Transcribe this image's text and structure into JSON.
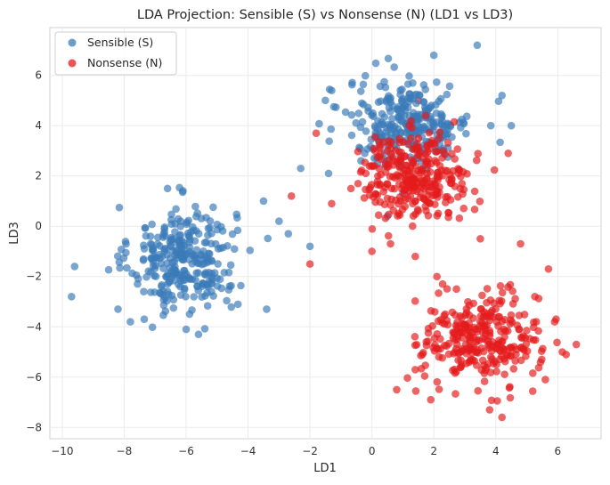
{
  "chart_data": {
    "type": "scatter",
    "title": "LDA Projection: Sensible (S) vs Nonsense (N) (LD1 vs LD3)",
    "xlabel": "LD1",
    "ylabel": "LD3",
    "xlim": [
      -10.4,
      7.4
    ],
    "ylim": [
      -8.45,
      7.9
    ],
    "xticks": [
      -10,
      -8,
      -6,
      -4,
      -2,
      0,
      2,
      4,
      6
    ],
    "yticks": [
      -8,
      -6,
      -4,
      -2,
      0,
      2,
      4,
      6
    ],
    "grid": true,
    "legend_position": "top-left",
    "series": [
      {
        "name": "Sensible (S)",
        "color": "#3a7bb8",
        "clusters": [
          {
            "center": [
              -6.1,
              -1.3
            ],
            "spread": [
              0.85,
              1.05
            ],
            "n": 300
          },
          {
            "center": [
              1.2,
              4.1
            ],
            "spread": [
              1.0,
              0.85
            ],
            "n": 300
          }
        ],
        "points": [
          [
            -9.6,
            -1.6
          ],
          [
            -9.7,
            -2.8
          ],
          [
            -8.2,
            -3.3
          ],
          [
            -7.8,
            -3.8
          ],
          [
            -6.6,
            1.5
          ],
          [
            -6.0,
            -4.1
          ],
          [
            -5.6,
            -4.3
          ],
          [
            -3.4,
            -3.3
          ],
          [
            -3.0,
            0.2
          ],
          [
            -2.0,
            -0.8
          ],
          [
            -2.3,
            2.3
          ],
          [
            3.4,
            7.2
          ],
          [
            2.0,
            6.8
          ],
          [
            4.5,
            4.0
          ],
          [
            4.2,
            5.2
          ],
          [
            -1.3,
            5.4
          ],
          [
            -2.7,
            -0.3
          ],
          [
            -3.5,
            1.0
          ],
          [
            -1.4,
            2.1
          ],
          [
            0.5,
            0.4
          ]
        ]
      },
      {
        "name": "Nonsense (N)",
        "color": "#e41a1c",
        "clusters": [
          {
            "center": [
              1.4,
              2.0
            ],
            "spread": [
              0.9,
              0.85
            ],
            "n": 300
          },
          {
            "center": [
              3.5,
              -4.5
            ],
            "spread": [
              0.95,
              0.9
            ],
            "n": 300
          }
        ],
        "points": [
          [
            -2.6,
            1.2
          ],
          [
            -2.0,
            -1.5
          ],
          [
            -1.8,
            3.7
          ],
          [
            1.5,
            5.0
          ],
          [
            3.5,
            -0.5
          ],
          [
            4.8,
            -0.7
          ],
          [
            5.7,
            -1.7
          ],
          [
            5.9,
            -3.8
          ],
          [
            6.6,
            -4.7
          ],
          [
            5.6,
            -6.1
          ],
          [
            4.2,
            -7.6
          ],
          [
            3.8,
            -7.3
          ],
          [
            1.9,
            -6.9
          ],
          [
            0.8,
            -6.5
          ],
          [
            2.1,
            -2.0
          ],
          [
            4.4,
            2.9
          ],
          [
            1.4,
            -1.2
          ],
          [
            0.0,
            -1.0
          ],
          [
            -1.3,
            0.9
          ],
          [
            0.6,
            -0.7
          ]
        ]
      }
    ]
  }
}
